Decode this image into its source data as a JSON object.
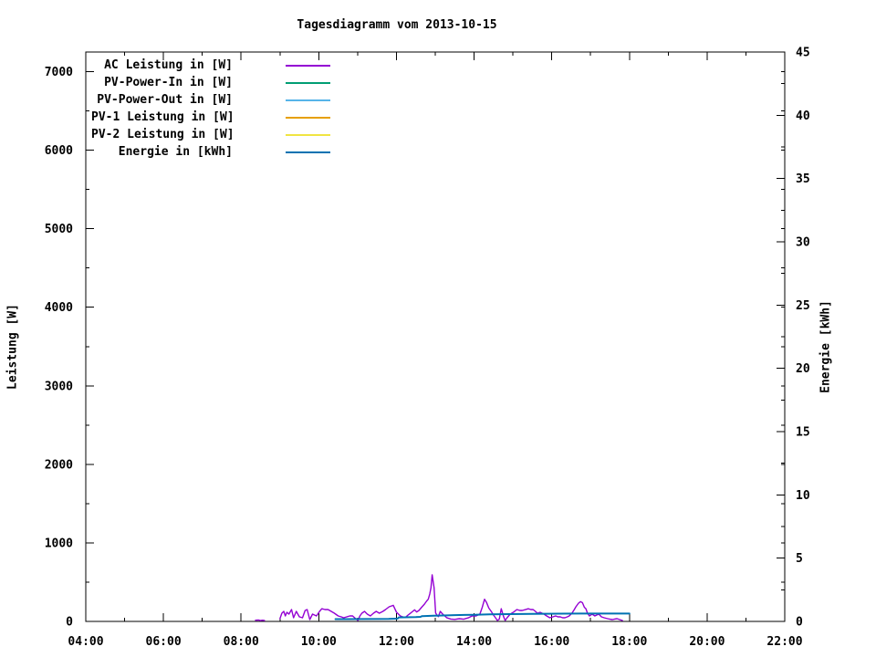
{
  "chart_data": {
    "type": "line",
    "title": "Tagesdiagramm vom 2013-10-15",
    "grid": false,
    "legend_position": "top-left-inside",
    "background": "#ffffff",
    "foreground": "#000000",
    "x_axis": {
      "min": 4,
      "max": 22,
      "minor_step": 1,
      "major_ticks": [
        [
          4,
          "04:00"
        ],
        [
          6,
          "06:00"
        ],
        [
          8,
          "08:00"
        ],
        [
          10,
          "10:00"
        ],
        [
          12,
          "12:00"
        ],
        [
          14,
          "14:00"
        ],
        [
          16,
          "16:00"
        ],
        [
          18,
          "18:00"
        ],
        [
          20,
          "20:00"
        ],
        [
          22,
          "22:00"
        ]
      ]
    },
    "y1_axis": {
      "label": "Leistung [W]",
      "min": 0,
      "max": 7250,
      "tick_max": 7000,
      "major_step": 1000,
      "minor_step": 500
    },
    "y2_axis": {
      "label": "Energie [kWh]",
      "min": 0,
      "max": 45,
      "tick_max": 45,
      "major_step": 5,
      "minor_step": 2.5
    },
    "series": [
      {
        "name": "AC Leistung in [W]",
        "color": "#9400D3",
        "axis": "y1",
        "points": [
          [
            8.37,
            15
          ],
          [
            8.45,
            18
          ],
          [
            8.5,
            10
          ],
          [
            8.55,
            15
          ],
          [
            8.6,
            12
          ],
          null,
          [
            9.0,
            35
          ],
          [
            9.05,
            105
          ],
          [
            9.1,
            128
          ],
          [
            9.14,
            70
          ],
          [
            9.18,
            116
          ],
          [
            9.23,
            93
          ],
          [
            9.3,
            151
          ],
          [
            9.35,
            46
          ],
          [
            9.42,
            128
          ],
          [
            9.5,
            58
          ],
          [
            9.58,
            46
          ],
          [
            9.65,
            139
          ],
          [
            9.7,
            151
          ],
          [
            9.77,
            23
          ],
          [
            9.84,
            93
          ],
          [
            9.94,
            70
          ],
          [
            10.02,
            128
          ],
          [
            10.08,
            162
          ],
          [
            10.16,
            151
          ],
          [
            10.24,
            151
          ],
          [
            10.32,
            128
          ],
          [
            10.4,
            105
          ],
          [
            10.5,
            70
          ],
          [
            10.58,
            58
          ],
          [
            10.64,
            46
          ],
          [
            10.72,
            58
          ],
          [
            10.8,
            70
          ],
          [
            10.87,
            70
          ],
          [
            10.95,
            35
          ],
          [
            11.01,
            12
          ],
          [
            11.06,
            70
          ],
          [
            11.11,
            105
          ],
          [
            11.18,
            128
          ],
          [
            11.25,
            93
          ],
          [
            11.33,
            70
          ],
          [
            11.41,
            105
          ],
          [
            11.48,
            128
          ],
          [
            11.56,
            105
          ],
          [
            11.65,
            128
          ],
          [
            11.72,
            151
          ],
          [
            11.81,
            186
          ],
          [
            11.92,
            205
          ],
          [
            12.0,
            120
          ],
          [
            12.1,
            70
          ],
          [
            12.18,
            55
          ],
          [
            12.23,
            50
          ],
          [
            12.3,
            81
          ],
          [
            12.35,
            100
          ],
          [
            12.42,
            128
          ],
          [
            12.47,
            147
          ],
          [
            12.52,
            120
          ],
          [
            12.58,
            140
          ],
          [
            12.66,
            186
          ],
          [
            12.72,
            220
          ],
          [
            12.78,
            260
          ],
          [
            12.82,
            282
          ],
          [
            12.86,
            350
          ],
          [
            12.89,
            430
          ],
          [
            12.92,
            592
          ],
          [
            12.95,
            490
          ],
          [
            12.97,
            430
          ],
          [
            13.01,
            108
          ],
          [
            13.05,
            75
          ],
          [
            13.08,
            60
          ],
          [
            13.13,
            128
          ],
          [
            13.17,
            105
          ],
          [
            13.22,
            80
          ],
          [
            13.3,
            45
          ],
          [
            13.4,
            30
          ],
          [
            13.5,
            25
          ],
          [
            13.62,
            35
          ],
          [
            13.73,
            28
          ],
          [
            13.85,
            45
          ],
          [
            13.95,
            70
          ],
          [
            14.05,
            70
          ],
          [
            14.15,
            93
          ],
          [
            14.21,
            180
          ],
          [
            14.27,
            282
          ],
          [
            14.32,
            240
          ],
          [
            14.38,
            170
          ],
          [
            14.44,
            128
          ],
          [
            14.5,
            81
          ],
          [
            14.55,
            46
          ],
          [
            14.6,
            12
          ],
          [
            14.65,
            30
          ],
          [
            14.7,
            162
          ],
          [
            14.76,
            60
          ],
          [
            14.8,
            12
          ],
          [
            14.85,
            46
          ],
          [
            14.93,
            93
          ],
          [
            15.02,
            120
          ],
          [
            15.1,
            151
          ],
          [
            15.18,
            139
          ],
          [
            15.24,
            139
          ],
          [
            15.32,
            150
          ],
          [
            15.4,
            162
          ],
          [
            15.46,
            151
          ],
          [
            15.52,
            151
          ],
          [
            15.58,
            128
          ],
          [
            15.63,
            105
          ],
          [
            15.7,
            116
          ],
          [
            15.8,
            93
          ],
          [
            15.87,
            70
          ],
          [
            15.95,
            46
          ],
          [
            16.03,
            58
          ],
          [
            16.1,
            70
          ],
          [
            16.16,
            58
          ],
          [
            16.22,
            58
          ],
          [
            16.28,
            46
          ],
          [
            16.34,
            46
          ],
          [
            16.4,
            58
          ],
          [
            16.45,
            70
          ],
          [
            16.52,
            105
          ],
          [
            16.58,
            150
          ],
          [
            16.62,
            186
          ],
          [
            16.69,
            232
          ],
          [
            16.74,
            252
          ],
          [
            16.79,
            238
          ],
          [
            16.84,
            180
          ],
          [
            16.88,
            162
          ],
          [
            16.92,
            105
          ],
          [
            16.97,
            70
          ],
          [
            17.04,
            93
          ],
          [
            17.11,
            70
          ],
          [
            17.16,
            81
          ],
          [
            17.21,
            93
          ],
          [
            17.28,
            58
          ],
          [
            17.35,
            46
          ],
          [
            17.44,
            35
          ],
          [
            17.5,
            28
          ],
          [
            17.56,
            23
          ],
          [
            17.62,
            30
          ],
          [
            17.68,
            35
          ],
          [
            17.75,
            23
          ],
          [
            17.82,
            12
          ]
        ]
      },
      {
        "name": "PV-Power-In in [W]",
        "color": "#009E73",
        "axis": "y1",
        "points": []
      },
      {
        "name": "PV-Power-Out in [W]",
        "color": "#56B4E9",
        "axis": "y1",
        "points": []
      },
      {
        "name": "PV-1 Leistung in [W]",
        "color": "#E69F00",
        "axis": "y1",
        "points": []
      },
      {
        "name": "PV-2 Leistung in [W]",
        "color": "#F0E442",
        "axis": "y1",
        "points": []
      },
      {
        "name": "Energie in [kWh]",
        "color": "#0072B2",
        "axis": "y2",
        "points": [
          [
            10.43,
            0.18
          ],
          [
            11.2,
            0.19
          ],
          [
            11.8,
            0.2
          ],
          [
            12.03,
            0.22
          ],
          [
            12.06,
            0.32
          ],
          [
            12.5,
            0.34
          ],
          [
            12.62,
            0.36
          ],
          [
            12.66,
            0.42
          ],
          [
            12.95,
            0.45
          ],
          [
            13.2,
            0.47
          ],
          [
            13.5,
            0.5
          ],
          [
            14.0,
            0.53
          ],
          [
            14.4,
            0.56
          ],
          [
            14.9,
            0.58
          ],
          [
            15.5,
            0.6
          ],
          [
            16.2,
            0.61
          ],
          [
            17.0,
            0.62
          ],
          [
            18.0,
            0.62
          ]
        ]
      }
    ]
  }
}
